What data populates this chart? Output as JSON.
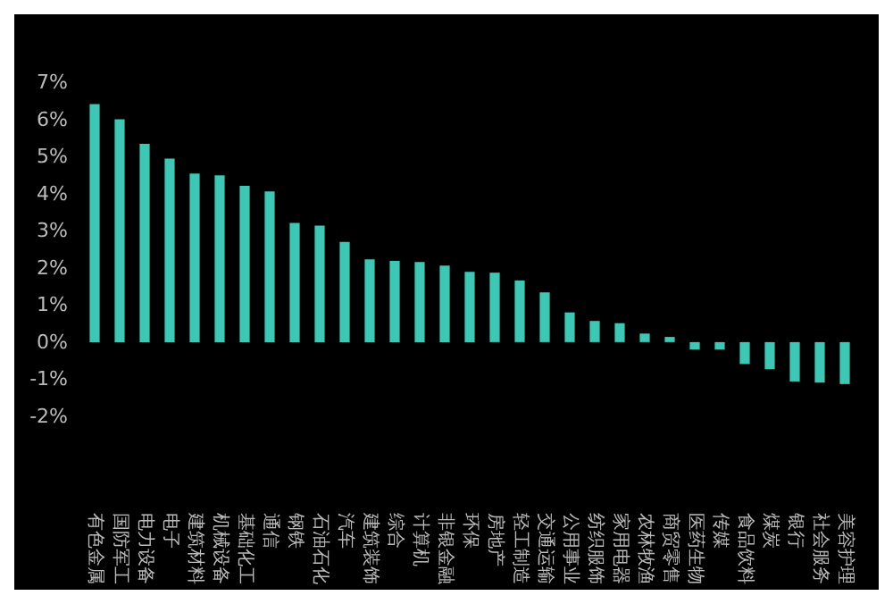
{
  "chart_data": {
    "type": "bar",
    "categories": [
      "有色金属",
      "国防军工",
      "电力设备",
      "电子",
      "建筑材料",
      "机械设备",
      "基础化工",
      "通信",
      "钢铁",
      "石油石化",
      "汽车",
      "建筑装饰",
      "综合",
      "计算机",
      "非银金融",
      "环保",
      "房地产",
      "轻工制造",
      "交通运输",
      "公用事业",
      "纺织服饰",
      "家用电器",
      "农林牧渔",
      "商贸零售",
      "医药生物",
      "传媒",
      "食品饮料",
      "煤炭",
      "银行",
      "社会服务",
      "美容护理"
    ],
    "values": [
      6.41,
      6.0,
      5.34,
      4.94,
      4.54,
      4.49,
      4.21,
      4.06,
      3.21,
      3.14,
      2.7,
      2.23,
      2.19,
      2.16,
      2.06,
      1.89,
      1.87,
      1.66,
      1.34,
      0.8,
      0.57,
      0.51,
      0.23,
      0.14,
      -0.2,
      -0.2,
      -0.59,
      -0.73,
      -1.06,
      -1.09,
      -1.13
    ],
    "color": "#3cc8b4",
    "ylim": [
      -2,
      7
    ],
    "yticks": [
      {
        "value": -2,
        "label": "-2%"
      },
      {
        "value": -1,
        "label": "-1%"
      },
      {
        "value": 0,
        "label": "0%"
      },
      {
        "value": 1,
        "label": "1%"
      },
      {
        "value": 2,
        "label": "2%"
      },
      {
        "value": 3,
        "label": "3%"
      },
      {
        "value": 4,
        "label": "4%"
      },
      {
        "value": 5,
        "label": "5%"
      },
      {
        "value": 6,
        "label": "6%"
      },
      {
        "value": 7,
        "label": "7%"
      }
    ],
    "grid": false
  }
}
